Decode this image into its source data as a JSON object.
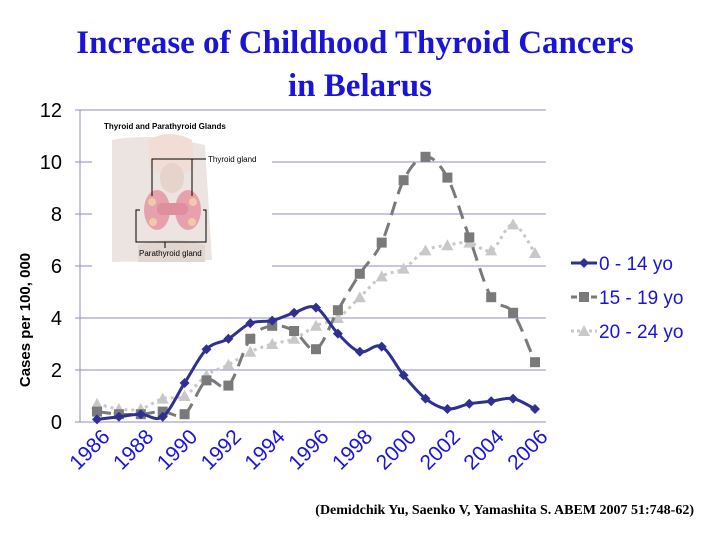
{
  "title": {
    "line1": "Increase of Childhood Thyroid Cancers",
    "line2": "in Belarus"
  },
  "citation": "(Demidchik Yu, Saenko V, Yamashita S. ABEM 2007 51:748-62)",
  "inset": {
    "caption": "Thyroid and Parathyroid Glands",
    "thyroid_label": "Thyroid gland",
    "parathyroid_label": "Parathyroid gland"
  },
  "colors": {
    "title": "#1a14d8",
    "grid": "#8c8cc8",
    "series_0_14": "#2e3192",
    "series_15_19": "#7a7a7a",
    "series_20_24": "#c8c8c8"
  },
  "chart_data": {
    "type": "line",
    "title": "Increase of Childhood Thyroid Cancers in Belarus",
    "xlabel": "",
    "ylabel": "Cases per 100, 000",
    "ylim": [
      0,
      12
    ],
    "yticks": [
      "0",
      "2",
      "4",
      "6",
      "8",
      "10",
      "12"
    ],
    "x": [
      1986,
      1987,
      1988,
      1989,
      1990,
      1991,
      1992,
      1993,
      1994,
      1995,
      1996,
      1997,
      1998,
      1999,
      2000,
      2001,
      2002,
      2003,
      2004,
      2005,
      2006
    ],
    "xticks": [
      "1986",
      "1988",
      "1990",
      "1992",
      "1994",
      "1996",
      "1998",
      "2000",
      "2002",
      "2004",
      "2006"
    ],
    "grid": true,
    "legend": "right",
    "series": [
      {
        "name": "0 - 14 yo",
        "marker": "diamond",
        "style": "solid",
        "values": [
          0.1,
          0.2,
          0.3,
          0.2,
          1.5,
          2.8,
          3.2,
          3.8,
          3.9,
          4.2,
          4.4,
          3.4,
          2.7,
          2.9,
          1.8,
          0.9,
          0.5,
          0.7,
          0.8,
          0.9,
          0.5
        ]
      },
      {
        "name": "15 - 19 yo",
        "marker": "square",
        "style": "dashed",
        "values": [
          0.4,
          0.3,
          0.3,
          0.4,
          0.3,
          1.6,
          1.4,
          3.2,
          3.7,
          3.5,
          2.8,
          4.3,
          5.7,
          6.9,
          9.3,
          10.2,
          9.4,
          7.1,
          4.8,
          4.2,
          2.3
        ]
      },
      {
        "name": "20 - 24 yo",
        "marker": "triangle",
        "style": "dotted",
        "values": [
          0.7,
          0.5,
          0.5,
          0.9,
          1.0,
          1.8,
          2.2,
          2.7,
          3.0,
          3.2,
          3.7,
          4.0,
          4.8,
          5.6,
          5.9,
          6.6,
          6.8,
          6.9,
          6.6,
          7.6,
          6.5
        ]
      }
    ]
  }
}
